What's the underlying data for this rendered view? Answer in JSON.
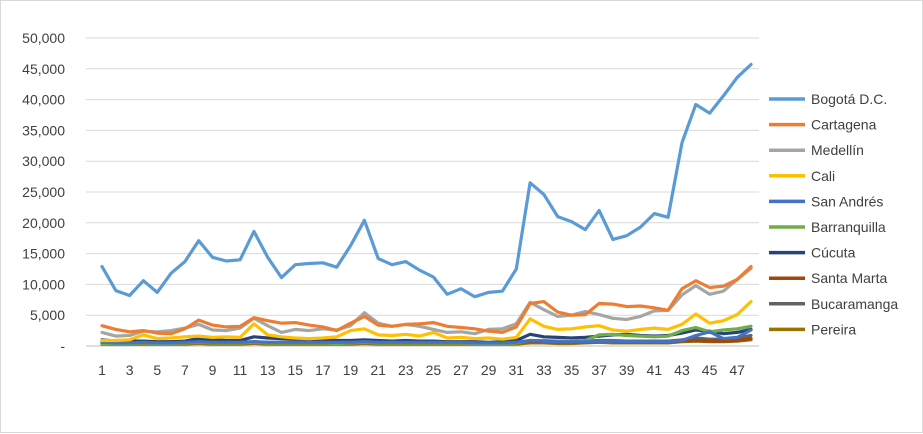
{
  "chart_data": {
    "type": "line",
    "title": "",
    "xlabel": "",
    "ylabel": "",
    "ylim": [
      0,
      50000
    ],
    "yticks": [
      "-",
      "5,000",
      "10,000",
      "15,000",
      "20,000",
      "25,000",
      "30,000",
      "35,000",
      "40,000",
      "45,000",
      "50,000"
    ],
    "xtick_labels": [
      "1",
      "3",
      "5",
      "7",
      "9",
      "11",
      "13",
      "15",
      "17",
      "19",
      "21",
      "23",
      "25",
      "27",
      "29",
      "31",
      "33",
      "35",
      "37",
      "39",
      "41",
      "43",
      "45",
      "47"
    ],
    "grid": "horizontal",
    "legend_position": "right",
    "x": [
      1,
      2,
      3,
      4,
      5,
      6,
      7,
      8,
      9,
      10,
      11,
      12,
      13,
      14,
      15,
      16,
      17,
      18,
      19,
      20,
      21,
      22,
      23,
      24,
      25,
      26,
      27,
      28,
      29,
      30,
      31,
      32,
      33,
      34,
      35,
      36,
      37,
      38,
      39,
      40,
      41,
      42,
      43,
      44,
      45,
      46,
      47,
      48
    ],
    "series": [
      {
        "name": "Bogotá D.C.",
        "color": "#5b9bd5",
        "values": [
          12900,
          9000,
          8200,
          10600,
          8700,
          11800,
          13700,
          17100,
          14400,
          13800,
          14000,
          18600,
          14400,
          11100,
          13200,
          13400,
          13500,
          12800,
          16300,
          20400,
          14200,
          13200,
          13700,
          12300,
          11200,
          8400,
          9300,
          8000,
          8700,
          8900,
          12500,
          26500,
          24600,
          21000,
          20200,
          18900,
          22000,
          17300,
          17900,
          19300,
          21500,
          20900,
          33000,
          39200,
          37800,
          40600,
          43600,
          45700
        ]
      },
      {
        "name": "Cartagena",
        "color": "#ed7d31",
        "values": [
          3300,
          2700,
          2300,
          2500,
          2100,
          2000,
          2800,
          4200,
          3400,
          3100,
          3200,
          4600,
          4100,
          3700,
          3800,
          3400,
          3100,
          2500,
          3700,
          4800,
          3400,
          3200,
          3500,
          3600,
          3800,
          3200,
          3000,
          2800,
          2400,
          2200,
          3100,
          6900,
          7200,
          5500,
          5000,
          5100,
          6900,
          6800,
          6400,
          6500,
          6200,
          5800,
          9300,
          10600,
          9500,
          9700,
          10800,
          12900
        ]
      },
      {
        "name": "Medellín",
        "color": "#a5a5a5",
        "values": [
          2200,
          1600,
          1700,
          2400,
          2300,
          2500,
          2900,
          3500,
          2600,
          2500,
          2900,
          4500,
          3300,
          2200,
          2700,
          2500,
          2800,
          2600,
          3300,
          5400,
          3700,
          3200,
          3500,
          3200,
          2700,
          2200,
          2300,
          2000,
          2700,
          2800,
          3600,
          7100,
          5900,
          4800,
          5000,
          5600,
          5100,
          4500,
          4300,
          4800,
          5700,
          5800,
          8300,
          9800,
          8400,
          8900,
          10800,
          12600
        ]
      },
      {
        "name": "Cali",
        "color": "#ffc000",
        "values": [
          900,
          900,
          1000,
          1800,
          1200,
          1300,
          1500,
          1600,
          1400,
          1500,
          1400,
          3600,
          1800,
          1500,
          1300,
          1200,
          1300,
          1500,
          2500,
          2800,
          1800,
          1700,
          1900,
          1600,
          2200,
          1300,
          1400,
          1200,
          1300,
          1100,
          1400,
          4400,
          3200,
          2700,
          2800,
          3100,
          3300,
          2600,
          2400,
          2700,
          2900,
          2700,
          3500,
          5200,
          3700,
          4100,
          5100,
          7200
        ]
      },
      {
        "name": "San Andrés",
        "color": "#4472c4",
        "values": [
          600,
          500,
          500,
          600,
          500,
          500,
          600,
          700,
          600,
          600,
          600,
          700,
          600,
          600,
          600,
          600,
          600,
          600,
          600,
          700,
          600,
          600,
          600,
          600,
          600,
          600,
          600,
          500,
          500,
          500,
          600,
          900,
          800,
          700,
          700,
          700,
          800,
          800,
          700,
          700,
          700,
          700,
          900,
          1700,
          2300,
          1200,
          1400,
          2600
        ]
      },
      {
        "name": "Barranquilla",
        "color": "#70ad47",
        "values": [
          400,
          400,
          400,
          500,
          400,
          400,
          500,
          600,
          500,
          500,
          500,
          600,
          500,
          500,
          500,
          500,
          500,
          400,
          500,
          600,
          500,
          500,
          500,
          500,
          500,
          500,
          500,
          400,
          400,
          400,
          500,
          900,
          900,
          800,
          700,
          900,
          1800,
          1900,
          1700,
          1600,
          1500,
          1600,
          2500,
          3000,
          2300,
          2600,
          2800,
          3200
        ]
      },
      {
        "name": "Cúcuta",
        "color": "#264478",
        "values": [
          1000,
          800,
          800,
          800,
          700,
          700,
          800,
          1200,
          1000,
          900,
          900,
          1500,
          1300,
          1200,
          1100,
          1100,
          1000,
          900,
          900,
          1000,
          900,
          800,
          900,
          800,
          800,
          700,
          700,
          700,
          600,
          700,
          900,
          1900,
          1500,
          1400,
          1300,
          1400,
          1600,
          1800,
          1900,
          1700,
          1600,
          1700,
          2100,
          2600,
          2400,
          2000,
          2200,
          2700
        ]
      },
      {
        "name": "Santa Marta",
        "color": "#9e480e",
        "values": [
          500,
          400,
          400,
          500,
          400,
          400,
          500,
          600,
          500,
          500,
          500,
          600,
          500,
          500,
          500,
          500,
          500,
          400,
          500,
          600,
          500,
          500,
          500,
          500,
          500,
          500,
          500,
          400,
          400,
          400,
          500,
          700,
          700,
          600,
          600,
          600,
          700,
          700,
          600,
          600,
          600,
          600,
          800,
          900,
          800,
          800,
          900,
          1200
        ]
      },
      {
        "name": "Bucaramanga",
        "color": "#636363",
        "values": [
          600,
          500,
          500,
          600,
          500,
          500,
          600,
          700,
          600,
          600,
          600,
          700,
          600,
          600,
          600,
          600,
          600,
          500,
          600,
          700,
          600,
          600,
          600,
          600,
          600,
          600,
          600,
          500,
          500,
          500,
          600,
          800,
          800,
          700,
          700,
          800,
          900,
          900,
          800,
          800,
          800,
          800,
          1000,
          1300,
          1100,
          1100,
          1300,
          1700
        ]
      },
      {
        "name": "Pereira",
        "color": "#997300",
        "values": [
          300,
          300,
          300,
          300,
          300,
          300,
          300,
          400,
          300,
          300,
          300,
          400,
          300,
          300,
          300,
          300,
          300,
          300,
          300,
          400,
          300,
          300,
          300,
          300,
          300,
          300,
          300,
          300,
          300,
          300,
          300,
          500,
          500,
          400,
          400,
          500,
          600,
          500,
          500,
          500,
          500,
          500,
          700,
          800,
          700,
          700,
          800,
          1000
        ]
      }
    ]
  }
}
